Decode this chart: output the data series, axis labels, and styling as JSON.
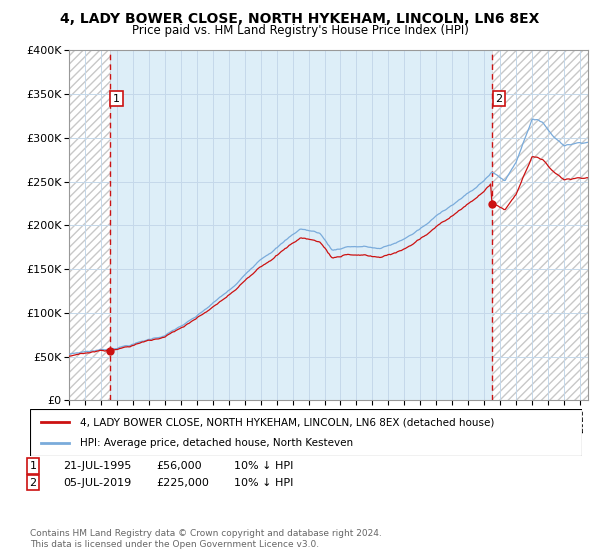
{
  "title": "4, LADY BOWER CLOSE, NORTH HYKEHAM, LINCOLN, LN6 8EX",
  "subtitle": "Price paid vs. HM Land Registry's House Price Index (HPI)",
  "ylim": [
    0,
    400000
  ],
  "yticks": [
    0,
    50000,
    100000,
    150000,
    200000,
    250000,
    300000,
    350000,
    400000
  ],
  "ytick_labels": [
    "£0",
    "£50K",
    "£100K",
    "£150K",
    "£200K",
    "£250K",
    "£300K",
    "£350K",
    "£400K"
  ],
  "xmin": 1993.0,
  "xmax": 2025.5,
  "sale1_date": 1995.55,
  "sale1_price": 56000,
  "sale1_label": "1",
  "sale2_date": 2019.51,
  "sale2_price": 225000,
  "sale2_label": "2",
  "legend_line1": "4, LADY BOWER CLOSE, NORTH HYKEHAM, LINCOLN, LN6 8EX (detached house)",
  "legend_line2": "HPI: Average price, detached house, North Kesteven",
  "note1_num": "1",
  "note1_date": "21-JUL-1995",
  "note1_price": "£56,000",
  "note1_hpi": "10% ↓ HPI",
  "note2_num": "2",
  "note2_date": "05-JUL-2019",
  "note2_price": "£225,000",
  "note2_hpi": "10% ↓ HPI",
  "copyright": "Contains HM Land Registry data © Crown copyright and database right 2024.\nThis data is licensed under the Open Government Licence v3.0.",
  "hpi_color": "#7aabdb",
  "sale_color": "#cc1111",
  "grid_color": "#c5d8ea",
  "bg_color": "#ddeef8",
  "hatch_color": "#c8c8c8"
}
